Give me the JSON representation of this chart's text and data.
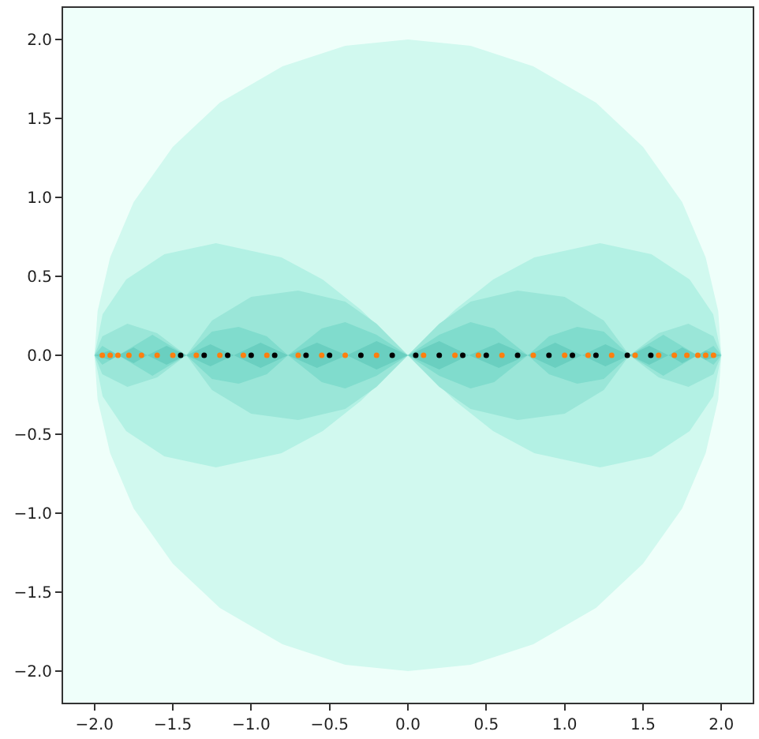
{
  "chart_data": {
    "type": "area",
    "xlim": [
      -2.2,
      2.2
    ],
    "ylim": [
      -2.2,
      2.2
    ],
    "xticks": [
      {
        "value": -2,
        "label": "−2.0"
      },
      {
        "value": -1.5,
        "label": "−1.5"
      },
      {
        "value": -1,
        "label": "−1.0"
      },
      {
        "value": -0.5,
        "label": "−0.5"
      },
      {
        "value": 0,
        "label": "0.0"
      },
      {
        "value": 0.5,
        "label": "0.5"
      },
      {
        "value": 1,
        "label": "1.0"
      },
      {
        "value": 1.5,
        "label": "1.5"
      },
      {
        "value": 2,
        "label": "2.0"
      }
    ],
    "yticks": [
      {
        "value": -2,
        "label": "−2.0"
      },
      {
        "value": -1.5,
        "label": "−1.5"
      },
      {
        "value": -1,
        "label": "−1.0"
      },
      {
        "value": -0.5,
        "label": "−0.5"
      },
      {
        "value": 0,
        "label": "0.0"
      },
      {
        "value": 0.5,
        "label": "0.5"
      },
      {
        "value": 1,
        "label": "1.0"
      },
      {
        "value": 1.5,
        "label": "1.5"
      },
      {
        "value": 2,
        "label": "2.0"
      }
    ],
    "grid": false,
    "series": [
      {
        "color": "#d1f9ef",
        "x": [
          -2,
          -1.98,
          -1.9,
          -1.75,
          -1.5,
          -1.2,
          -0.8,
          -0.4,
          0,
          0.4,
          0.8,
          1.2,
          1.5,
          1.75,
          1.9,
          1.98,
          2
        ],
        "values": [
          0,
          0.28,
          0.62,
          0.97,
          1.32,
          1.6,
          1.83,
          1.96,
          2,
          1.96,
          1.83,
          1.6,
          1.32,
          0.97,
          0.62,
          0.28,
          0
        ]
      },
      {
        "color": "#d1f9ef",
        "x": [
          -2,
          -1.98,
          -1.9,
          -1.75,
          -1.5,
          -1.2,
          -0.8,
          -0.4,
          0,
          0.4,
          0.8,
          1.2,
          1.5,
          1.75,
          1.9,
          1.98,
          2
        ],
        "values": [
          0,
          -0.28,
          -0.62,
          -0.97,
          -1.32,
          -1.6,
          -1.83,
          -1.96,
          -2,
          -1.96,
          -1.83,
          -1.6,
          -1.32,
          -0.97,
          -0.62,
          -0.28,
          0
        ]
      },
      {
        "color": "#b3f1e4",
        "x": [
          -2,
          -1.948,
          -1.798,
          -1.554,
          -1.225,
          -0.807,
          -0.544,
          -0.302,
          0,
          0.302,
          0.544,
          0.807,
          1.225,
          1.554,
          1.798,
          1.948,
          2
        ],
        "values": [
          0,
          0.26,
          0.48,
          0.64,
          0.71,
          0.62,
          0.48,
          0.29,
          0,
          0.29,
          0.48,
          0.62,
          0.71,
          0.64,
          0.48,
          0.26,
          0
        ]
      },
      {
        "color": "#b3f1e4",
        "x": [
          -2,
          -1.948,
          -1.798,
          -1.554,
          -1.225,
          -0.807,
          -0.544,
          -0.302,
          0,
          0.302,
          0.544,
          0.807,
          1.225,
          1.554,
          1.798,
          1.948,
          2
        ],
        "values": [
          0,
          -0.26,
          -0.48,
          -0.64,
          -0.71,
          -0.62,
          -0.48,
          -0.29,
          0,
          -0.29,
          -0.48,
          -0.62,
          -0.71,
          -0.64,
          -0.48,
          -0.26,
          0
        ]
      },
      {
        "color": "#9ae6d8",
        "x": [
          -2,
          -1.95,
          -1.79,
          -1.6,
          -1.414,
          -1.25,
          -1.0,
          -0.7,
          -0.4,
          -0.2,
          0,
          0.2,
          0.4,
          0.7,
          1.0,
          1.25,
          1.414,
          1.6,
          1.79,
          1.95,
          2
        ],
        "values": [
          0,
          0.12,
          0.2,
          0.14,
          0,
          0.22,
          0.37,
          0.41,
          0.34,
          0.2,
          0,
          0.2,
          0.34,
          0.41,
          0.37,
          0.22,
          0,
          0.14,
          0.2,
          0.12,
          0
        ]
      },
      {
        "color": "#9ae6d8",
        "x": [
          -2,
          -1.95,
          -1.79,
          -1.6,
          -1.414,
          -1.25,
          -1.0,
          -0.7,
          -0.4,
          -0.2,
          0,
          0.2,
          0.4,
          0.7,
          1.0,
          1.25,
          1.414,
          1.6,
          1.79,
          1.95,
          2
        ],
        "values": [
          0,
          -0.12,
          -0.2,
          -0.14,
          0,
          -0.22,
          -0.37,
          -0.41,
          -0.34,
          -0.2,
          0,
          -0.2,
          -0.34,
          -0.41,
          -0.37,
          -0.22,
          0,
          -0.14,
          -0.2,
          -0.12,
          0
        ]
      },
      {
        "color": "#80dccd",
        "x": [
          -2,
          -1.95,
          -1.848,
          -1.63,
          -1.414,
          -1.25,
          -1.08,
          -0.9,
          -0.765,
          -0.55,
          -0.4,
          -0.2,
          0,
          0.2,
          0.4,
          0.55,
          0.765,
          0.9,
          1.08,
          1.25,
          1.414,
          1.63,
          1.848,
          1.95,
          2
        ],
        "values": [
          0,
          0.06,
          0,
          0.13,
          0,
          0.15,
          0.18,
          0.12,
          0,
          0.17,
          0.21,
          0.13,
          0,
          0.13,
          0.21,
          0.17,
          0,
          0.12,
          0.18,
          0.15,
          0,
          0.13,
          0,
          0.06,
          0
        ]
      },
      {
        "color": "#80dccd",
        "x": [
          -2,
          -1.95,
          -1.848,
          -1.63,
          -1.414,
          -1.25,
          -1.08,
          -0.9,
          -0.765,
          -0.55,
          -0.4,
          -0.2,
          0,
          0.2,
          0.4,
          0.55,
          0.765,
          0.9,
          1.08,
          1.25,
          1.414,
          1.63,
          1.848,
          1.95,
          2
        ],
        "values": [
          0,
          -0.06,
          0,
          -0.13,
          0,
          -0.15,
          -0.18,
          -0.12,
          0,
          -0.17,
          -0.21,
          -0.13,
          0,
          -0.13,
          -0.21,
          -0.17,
          0,
          -0.12,
          -0.18,
          -0.15,
          0,
          -0.13,
          0,
          -0.06,
          0
        ]
      },
      {
        "color": "#6acfc0",
        "x": [
          -2,
          -1.9,
          -1.848,
          -1.75,
          -1.663,
          -1.54,
          -1.414,
          -1.26,
          -1.111,
          -0.94,
          -0.765,
          -0.58,
          -0.39,
          -0.2,
          0,
          0.2,
          0.39,
          0.58,
          0.765,
          0.94,
          1.111,
          1.26,
          1.414,
          1.54,
          1.663,
          1.75,
          1.848,
          1.9,
          2
        ],
        "values": [
          0,
          0.03,
          0,
          0.05,
          0,
          0.06,
          0,
          0.07,
          0,
          0.08,
          0,
          0.08,
          0,
          0.09,
          0,
          0.09,
          0,
          0.08,
          0,
          0.08,
          0,
          0.07,
          0,
          0.06,
          0,
          0.05,
          0,
          0.03,
          0
        ]
      },
      {
        "color": "#6acfc0",
        "x": [
          -2,
          -1.9,
          -1.848,
          -1.75,
          -1.663,
          -1.54,
          -1.414,
          -1.26,
          -1.111,
          -0.94,
          -0.765,
          -0.58,
          -0.39,
          -0.2,
          0,
          0.2,
          0.39,
          0.58,
          0.765,
          0.94,
          1.111,
          1.26,
          1.414,
          1.54,
          1.663,
          1.75,
          1.848,
          1.9,
          2
        ],
        "values": [
          0,
          -0.03,
          0,
          -0.05,
          0,
          -0.06,
          0,
          -0.07,
          0,
          -0.08,
          0,
          -0.08,
          0,
          -0.09,
          0,
          -0.09,
          0,
          -0.08,
          0,
          -0.08,
          0,
          -0.07,
          0,
          -0.06,
          0,
          -0.05,
          0,
          -0.03,
          0
        ]
      },
      {
        "type": "scatter",
        "color": "#ff7f0e",
        "marker": "circle",
        "x": [
          -1.95,
          -1.9,
          -1.85,
          -1.78,
          -1.7,
          -1.6,
          -1.5,
          -1.35,
          -1.2,
          -1.05,
          -0.9,
          -0.7,
          -0.55,
          -0.4,
          -0.2,
          0.1,
          0.3,
          0.45,
          0.6,
          0.8,
          1.0,
          1.15,
          1.3,
          1.45,
          1.6,
          1.7,
          1.78,
          1.85,
          1.9,
          1.95
        ],
        "values": [
          0,
          0,
          0,
          0,
          0,
          0,
          0,
          0,
          0,
          0,
          0,
          0,
          0,
          0,
          0,
          0,
          0,
          0,
          0,
          0,
          0,
          0,
          0,
          0,
          0,
          0,
          0,
          0,
          0,
          0
        ]
      },
      {
        "type": "scatter",
        "color": "#000000",
        "marker": "circle",
        "x": [
          -1.45,
          -1.3,
          -1.15,
          -1.0,
          -0.85,
          -0.65,
          -0.5,
          -0.3,
          -0.1,
          0.05,
          0.2,
          0.35,
          0.5,
          0.7,
          0.9,
          1.05,
          1.2,
          1.4,
          1.55
        ],
        "values": [
          0,
          0,
          0,
          0,
          0,
          0,
          0,
          0,
          0,
          0,
          0,
          0,
          0,
          0,
          0,
          0,
          0,
          0,
          0
        ]
      }
    ]
  }
}
